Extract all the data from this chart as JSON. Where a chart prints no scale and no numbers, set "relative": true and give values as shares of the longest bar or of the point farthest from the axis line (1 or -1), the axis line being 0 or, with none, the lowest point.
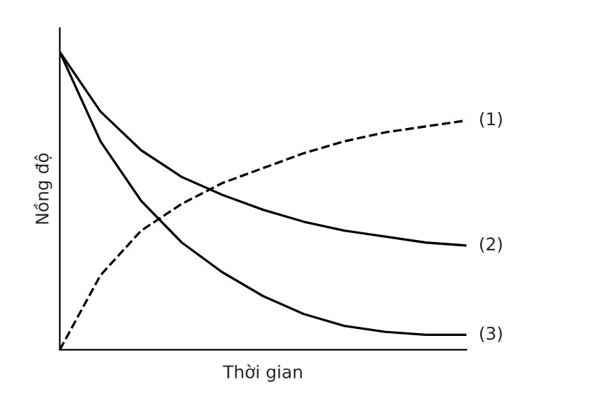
{
  "chart_data": {
    "type": "line",
    "relative": true,
    "xlabel": "Thời gian",
    "ylabel": "Nồng độ",
    "categories": [
      null,
      null,
      null,
      null,
      null,
      null,
      null,
      null,
      null,
      null,
      null
    ],
    "series": [
      {
        "name": "(1)",
        "color": "#000000",
        "line_style": "dashed",
        "values": [
          0,
          0.25,
          0.4,
          0.49,
          0.56,
          0.61,
          0.66,
          0.7,
          0.73,
          0.75,
          0.77
        ]
      },
      {
        "name": "(2)",
        "color": "#000000",
        "line_style": "solid",
        "values": [
          1,
          0.8,
          0.67,
          0.58,
          0.52,
          0.47,
          0.43,
          0.4,
          0.38,
          0.36,
          0.35
        ]
      },
      {
        "name": "(3)",
        "color": "#000000",
        "line_style": "solid",
        "values": [
          1,
          0.7,
          0.5,
          0.36,
          0.26,
          0.18,
          0.12,
          0.08,
          0.06,
          0.05,
          0.05
        ]
      }
    ],
    "grid": false,
    "legend": false
  }
}
